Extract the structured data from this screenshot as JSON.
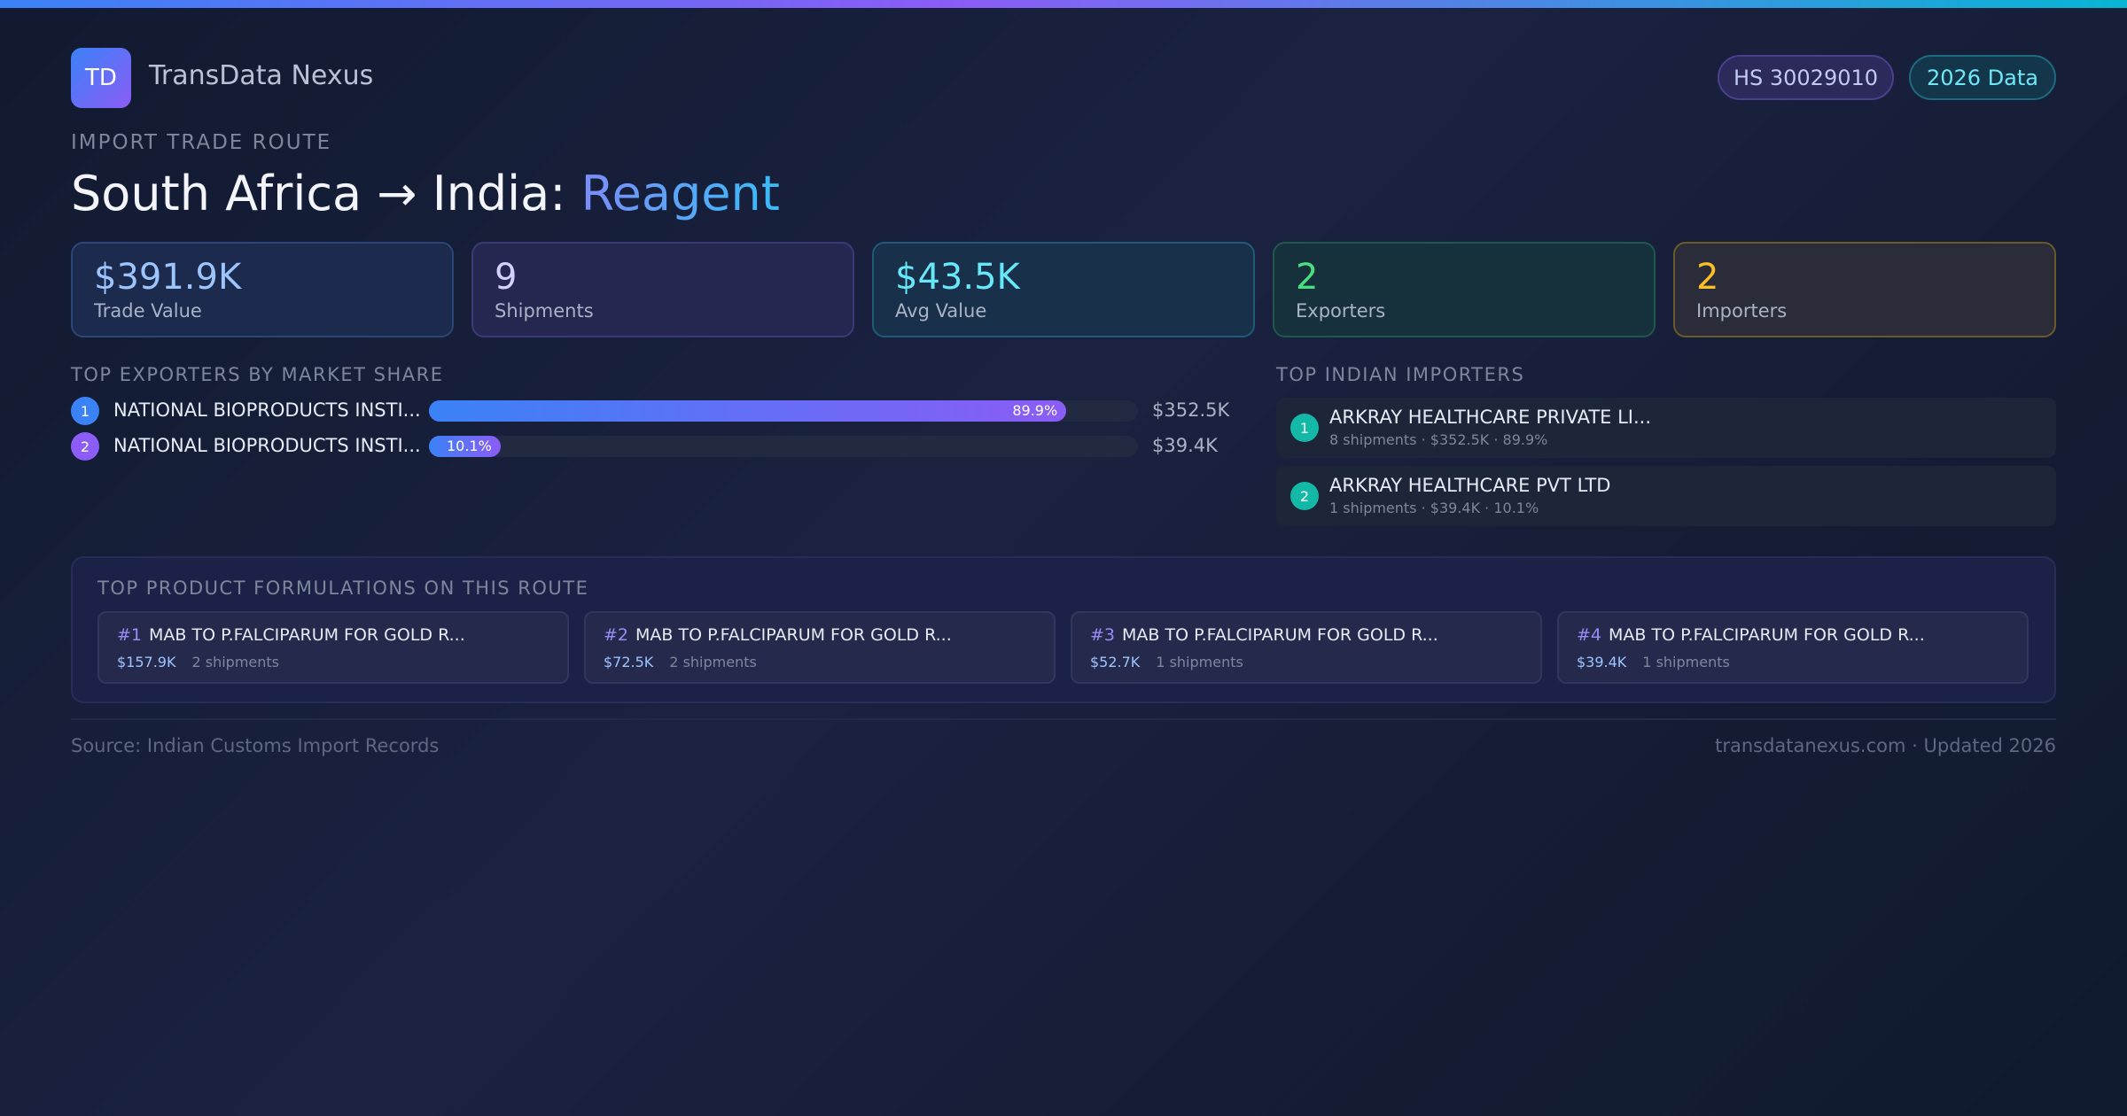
{
  "brand": {
    "logo_text": "TD",
    "name": "TransData Nexus"
  },
  "badges": {
    "hs_code": "HS 30029010",
    "year": "2026 Data"
  },
  "route": {
    "eyebrow": "IMPORT TRADE ROUTE",
    "title_prefix": "South Africa → India: ",
    "title_product": "Reagent"
  },
  "stats": [
    {
      "value": "$391.9K",
      "label": "Trade Value"
    },
    {
      "value": "9",
      "label": "Shipments"
    },
    {
      "value": "$43.5K",
      "label": "Avg Value"
    },
    {
      "value": "2",
      "label": "Exporters"
    },
    {
      "value": "2",
      "label": "Importers"
    }
  ],
  "exporters": {
    "heading": "TOP EXPORTERS BY MARKET SHARE",
    "items": [
      {
        "rank": "1",
        "name": "NATIONAL BIOPRODUCTS INSTI...",
        "share_pct": "89.9%",
        "share": 89.9,
        "value": "$352.5K",
        "color": "#3b82f6"
      },
      {
        "rank": "2",
        "name": "NATIONAL BIOPRODUCTS INSTI...",
        "share_pct": "10.1%",
        "share": 10.1,
        "value": "$39.4K",
        "color": "#8b5cf6"
      }
    ]
  },
  "importers": {
    "heading": "TOP INDIAN IMPORTERS",
    "items": [
      {
        "rank": "1",
        "name": "ARKRAY HEALTHCARE PRIVATE LI...",
        "meta": "8 shipments · $352.5K · 89.9%"
      },
      {
        "rank": "2",
        "name": "ARKRAY HEALTHCARE PVT LTD",
        "meta": "1 shipments · $39.4K · 10.1%"
      }
    ]
  },
  "formulations": {
    "heading": "TOP PRODUCT FORMULATIONS ON THIS ROUTE",
    "items": [
      {
        "num": "#1",
        "name": "MAB TO P.FALCIPARUM  FOR GOLD R...",
        "value": "$157.9K",
        "count": "2 shipments"
      },
      {
        "num": "#2",
        "name": "MAB TO P.FALCIPARUM  FOR GOLD R...",
        "value": "$72.5K",
        "count": "2 shipments"
      },
      {
        "num": "#3",
        "name": "MAB TO P.FALCIPARUM  FOR GOLD R...",
        "value": "$52.7K",
        "count": "1 shipments"
      },
      {
        "num": "#4",
        "name": "MAB TO P.FALCIPARUM  FOR GOLD R...",
        "value": "$39.4K",
        "count": "1 shipments"
      }
    ]
  },
  "footer": {
    "source": "Source: Indian Customs Import Records",
    "site": "transdatanexus.com · Updated 2026"
  }
}
